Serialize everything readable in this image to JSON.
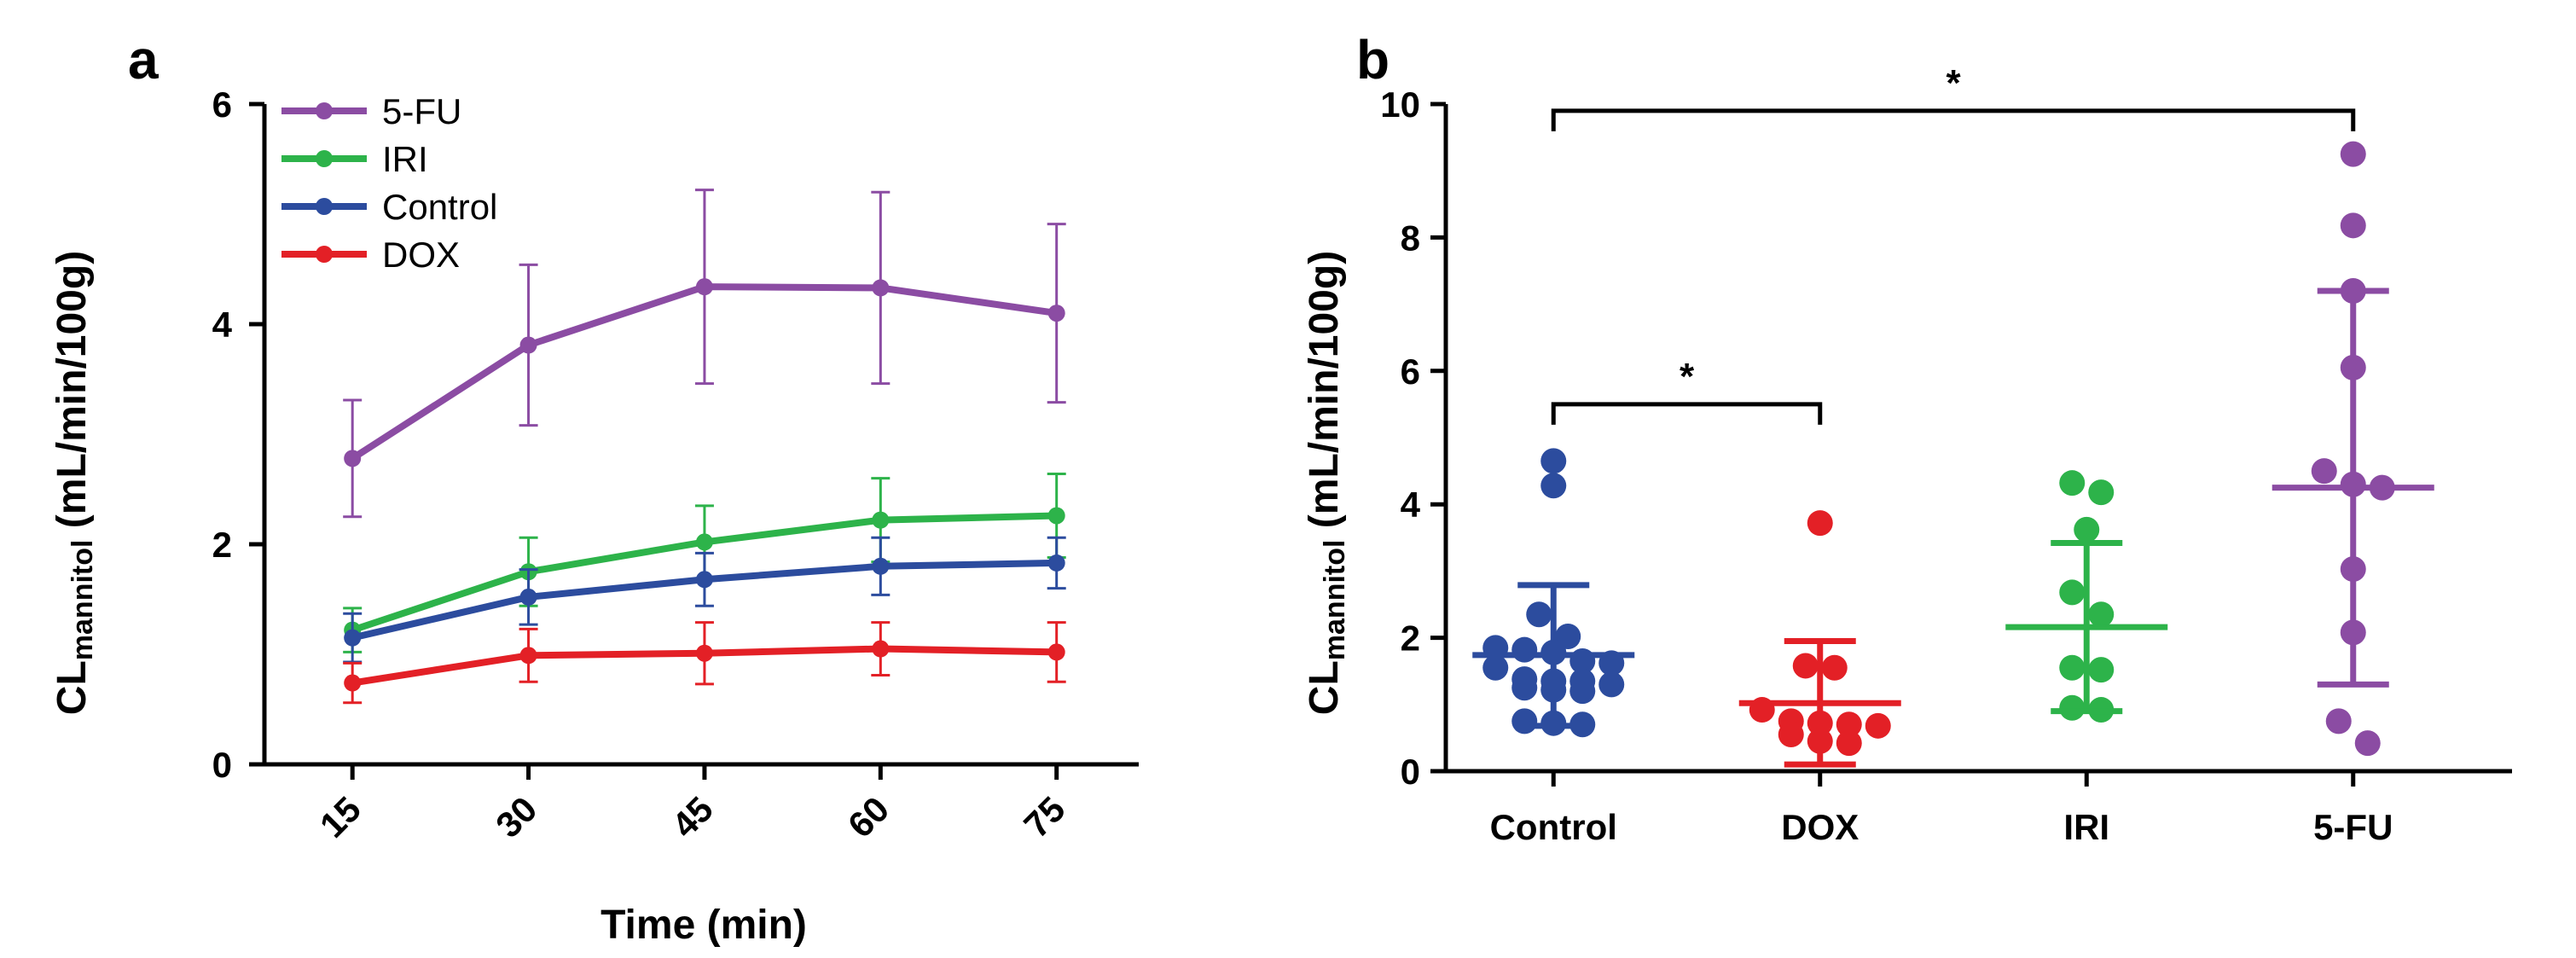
{
  "chart_data": [
    {
      "panel": "a",
      "type": "line",
      "ylabel_main": "CL",
      "ylabel_sub": "mannitol",
      "ylabel_unit": " (mL/min/100g)",
      "xlabel": "Time (min)",
      "x": [
        15,
        30,
        45,
        60,
        75
      ],
      "xlim": [
        7.5,
        82
      ],
      "ylim": [
        0,
        6
      ],
      "yticks": [
        0,
        2,
        4,
        6
      ],
      "legend_position": "top-left",
      "series": [
        {
          "name": "5-FU",
          "color": "#8b4ca3",
          "values": [
            2.78,
            3.81,
            4.34,
            4.33,
            4.1
          ],
          "errors": [
            0.53,
            0.73,
            0.88,
            0.87,
            0.81
          ]
        },
        {
          "name": "IRI",
          "color": "#2db34a",
          "values": [
            1.22,
            1.75,
            2.02,
            2.22,
            2.26
          ],
          "errors": [
            0.2,
            0.31,
            0.33,
            0.38,
            0.38
          ]
        },
        {
          "name": "Control",
          "color": "#2c4c9e",
          "values": [
            1.15,
            1.52,
            1.68,
            1.8,
            1.83
          ],
          "errors": [
            0.22,
            0.25,
            0.24,
            0.26,
            0.23
          ]
        },
        {
          "name": "DOX",
          "color": "#e32026",
          "values": [
            0.74,
            0.99,
            1.01,
            1.05,
            1.02
          ],
          "errors": [
            0.18,
            0.24,
            0.28,
            0.24,
            0.27
          ]
        }
      ]
    },
    {
      "panel": "b",
      "type": "scatter",
      "ylabel_main": "CL",
      "ylabel_sub": "mannitol",
      "ylabel_unit": " (mL/min/100g)",
      "categories": [
        "Control",
        "DOX",
        "IRI",
        "5-FU"
      ],
      "ylim": [
        0,
        10
      ],
      "yticks": [
        0,
        2,
        4,
        6,
        8,
        10
      ],
      "groups": [
        {
          "name": "Control",
          "color": "#2c4c9e",
          "mean": 1.74,
          "sd_low": 0.68,
          "sd_high": 2.79,
          "points": [
            4.65,
            4.28,
            2.35,
            2.02,
            1.85,
            1.82,
            1.78,
            1.65,
            1.62,
            1.55,
            1.38,
            1.35,
            1.35,
            1.3,
            1.25,
            1.22,
            1.2,
            0.75,
            0.72,
            0.7
          ]
        },
        {
          "name": "DOX",
          "color": "#e32026",
          "mean": 1.02,
          "sd_low": 0.1,
          "sd_high": 1.95,
          "points": [
            3.72,
            1.58,
            1.55,
            0.92,
            0.75,
            0.72,
            0.7,
            0.68,
            0.55,
            0.45,
            0.42
          ]
        },
        {
          "name": "IRI",
          "color": "#2db34a",
          "mean": 2.16,
          "sd_low": 0.9,
          "sd_high": 3.42,
          "points": [
            4.32,
            4.18,
            3.62,
            2.68,
            2.35,
            1.55,
            1.52,
            0.95,
            0.92
          ]
        },
        {
          "name": "5-FU",
          "color": "#8b4ca3",
          "mean": 4.25,
          "sd_low": 1.3,
          "sd_high": 7.2,
          "points": [
            9.25,
            8.18,
            7.2,
            6.05,
            4.5,
            4.3,
            4.25,
            3.03,
            2.08,
            0.75,
            0.42
          ]
        }
      ],
      "significance": [
        {
          "from": "Control",
          "to": "DOX",
          "y": 5.5,
          "label": "*"
        },
        {
          "from": "Control",
          "to": "5-FU",
          "y": 9.9,
          "label": "*"
        }
      ]
    }
  ]
}
